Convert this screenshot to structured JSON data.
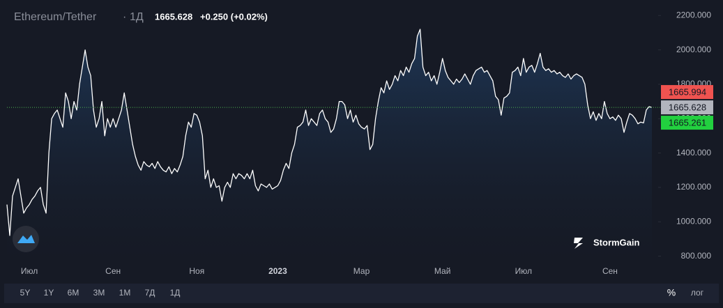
{
  "chart_data": {
    "type": "line",
    "title": "Ethereum/Tether",
    "interval": "1Д",
    "last_price": 1665.628,
    "change": "+0.250 (+0.02%)",
    "brand": "StormGain",
    "ranges": [
      "5Y",
      "1Y",
      "6M",
      "3M",
      "1M",
      "7Д",
      "1Д"
    ],
    "percent_toggle": "%",
    "log_toggle": "лог",
    "price_tags": [
      {
        "value": 1665.994,
        "color": "#f05350"
      },
      {
        "value": 1665.628,
        "color": "#b2b5be"
      },
      {
        "value": 1665.261,
        "color": "#22d03f"
      }
    ],
    "ylim": [
      770,
      2270
    ],
    "yticks": [
      {
        "value": 800,
        "label": "800.000"
      },
      {
        "value": 1000,
        "label": "1000.000"
      },
      {
        "value": 1200,
        "label": "1200.000"
      },
      {
        "value": 1400,
        "label": "1400.000"
      },
      {
        "value": 1600,
        "label": "1600.000"
      },
      {
        "value": 1800,
        "label": "1800.000"
      },
      {
        "value": 2000,
        "label": "2000.000"
      },
      {
        "value": 2200,
        "label": "2200.000"
      }
    ],
    "categories": [
      null,
      null,
      null,
      null,
      null,
      null,
      null,
      null,
      "Июл",
      null,
      null,
      null,
      null,
      null,
      null,
      null,
      null,
      null,
      null,
      null,
      null,
      null,
      null,
      null,
      null,
      null,
      null,
      null,
      null,
      null,
      null,
      null,
      null,
      null,
      null,
      null,
      null,
      null,
      "Сен",
      null,
      null,
      null,
      null,
      null,
      null,
      null,
      null,
      null,
      null,
      null,
      null,
      null,
      null,
      null,
      null,
      null,
      null,
      null,
      null,
      null,
      null,
      null,
      null,
      null,
      null,
      null,
      null,
      null,
      "Ноя",
      null,
      null,
      null,
      null,
      null,
      null,
      null,
      null,
      null,
      null,
      null,
      null,
      null,
      null,
      null,
      null,
      null,
      null,
      null,
      null,
      null,
      null,
      null,
      null,
      null,
      null,
      null,
      null,
      "2023",
      null,
      null,
      null,
      null,
      null,
      null,
      null,
      null,
      null,
      null,
      null,
      null,
      null,
      null,
      null,
      null,
      null,
      null,
      null,
      null,
      null,
      null,
      null,
      null,
      null,
      null,
      null,
      null,
      null,
      "Мар",
      null,
      null,
      null,
      null,
      null,
      null,
      null,
      null,
      null,
      null,
      null,
      null,
      null,
      null,
      null,
      null,
      null,
      null,
      null,
      null,
      null,
      null,
      null,
      null,
      null,
      null,
      null,
      null,
      "Май",
      null,
      null,
      null,
      null,
      null,
      null,
      null,
      null,
      null,
      null,
      null,
      null,
      null,
      null,
      null,
      null,
      null,
      null,
      null,
      null,
      null,
      null,
      null,
      null,
      null,
      null,
      null,
      null,
      "Июл",
      null,
      null,
      null,
      null,
      null,
      null,
      null,
      null,
      null,
      null,
      null,
      null,
      null,
      null,
      null,
      null,
      null,
      null,
      null,
      null,
      null,
      null,
      null,
      null,
      null,
      null,
      null,
      null,
      null,
      null,
      "Сен",
      null,
      null,
      null,
      null,
      null,
      null,
      null,
      null,
      null,
      null,
      null,
      null,
      null,
      null,
      null
    ],
    "series": [
      {
        "name": "Ethereum/Tether",
        "color": "#ffffff",
        "values": [
          1100,
          920,
          1150,
          1200,
          1250,
          1150,
          1050,
          1080,
          1100,
          1130,
          1150,
          1180,
          1200,
          1100,
          1050,
          1400,
          1600,
          1630,
          1650,
          1600,
          1550,
          1750,
          1700,
          1600,
          1700,
          1650,
          1800,
          1900,
          2000,
          1900,
          1850,
          1650,
          1550,
          1600,
          1700,
          1500,
          1600,
          1550,
          1600,
          1550,
          1600,
          1650,
          1750,
          1650,
          1550,
          1450,
          1380,
          1330,
          1300,
          1350,
          1330,
          1320,
          1340,
          1310,
          1350,
          1320,
          1300,
          1290,
          1320,
          1280,
          1310,
          1290,
          1330,
          1380,
          1500,
          1580,
          1550,
          1630,
          1620,
          1580,
          1500,
          1250,
          1300,
          1200,
          1250,
          1200,
          1210,
          1120,
          1200,
          1230,
          1200,
          1280,
          1250,
          1280,
          1270,
          1250,
          1280,
          1250,
          1300,
          1210,
          1180,
          1220,
          1210,
          1200,
          1220,
          1190,
          1200,
          1210,
          1240,
          1300,
          1340,
          1310,
          1400,
          1450,
          1550,
          1560,
          1580,
          1650,
          1560,
          1600,
          1580,
          1560,
          1630,
          1650,
          1600,
          1580,
          1520,
          1540,
          1600,
          1700,
          1700,
          1680,
          1600,
          1650,
          1580,
          1620,
          1570,
          1550,
          1540,
          1560,
          1420,
          1450,
          1600,
          1700,
          1780,
          1750,
          1820,
          1770,
          1800,
          1850,
          1820,
          1880,
          1850,
          1900,
          1870,
          1920,
          1950,
          2080,
          2120,
          1900,
          1850,
          1870,
          1820,
          1850,
          1800,
          1870,
          1950,
          1880,
          1840,
          1820,
          1800,
          1830,
          1810,
          1830,
          1860,
          1830,
          1800,
          1850,
          1880,
          1890,
          1900,
          1870,
          1880,
          1850,
          1820,
          1730,
          1710,
          1620,
          1720,
          1730,
          1750,
          1870,
          1880,
          1900,
          1850,
          1950,
          1870,
          1900,
          1910,
          1870,
          1920,
          1980,
          1900,
          1880,
          1890,
          1870,
          1880,
          1860,
          1870,
          1850,
          1840,
          1860,
          1830,
          1850,
          1860,
          1850,
          1840,
          1800,
          1680,
          1600,
          1640,
          1590,
          1630,
          1600,
          1700,
          1630,
          1600,
          1610,
          1590,
          1620,
          1600,
          1520,
          1580,
          1630,
          1620,
          1600,
          1570,
          1580,
          1575,
          1650,
          1670,
          1665
        ]
      }
    ]
  }
}
